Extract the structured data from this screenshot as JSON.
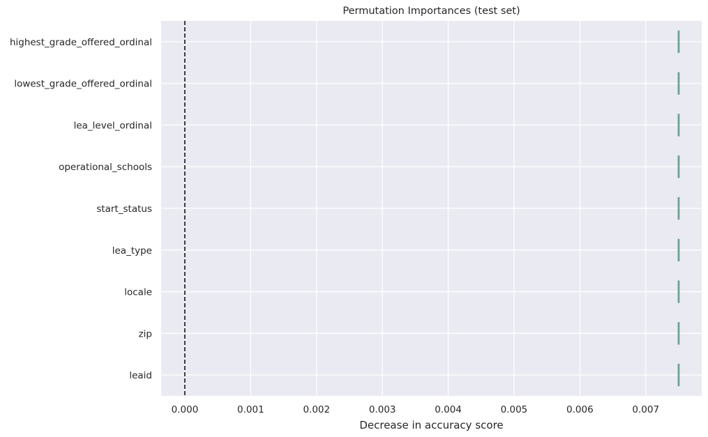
{
  "chart_data": {
    "type": "box",
    "orientation": "horizontal",
    "title": "Permutation Importances (test set)",
    "xlabel": "Decrease in accuracy score",
    "ylabel": "",
    "xlim": [
      -0.00036,
      0.00785
    ],
    "xticks": [
      0.0,
      0.001,
      0.002,
      0.003,
      0.004,
      0.005,
      0.006,
      0.007
    ],
    "xtick_labels": [
      "0.000",
      "0.001",
      "0.002",
      "0.003",
      "0.004",
      "0.005",
      "0.006",
      "0.007"
    ],
    "categories": [
      "highest_grade_offered_ordinal",
      "lowest_grade_offered_ordinal",
      "lea_level_ordinal",
      "operational_schools",
      "start_status",
      "lea_type",
      "locale",
      "zip",
      "leaid"
    ],
    "values": [
      0.0075,
      0.0075,
      0.0075,
      0.0075,
      0.0075,
      0.0075,
      0.0075,
      0.0075,
      0.0075
    ],
    "reference_line": {
      "x": 0.0,
      "style": "dashed",
      "color": "#111111"
    },
    "grid": true,
    "colors": {
      "plot_background": "#eaeaf2",
      "grid": "#ffffff",
      "box": "#6aa392"
    }
  }
}
